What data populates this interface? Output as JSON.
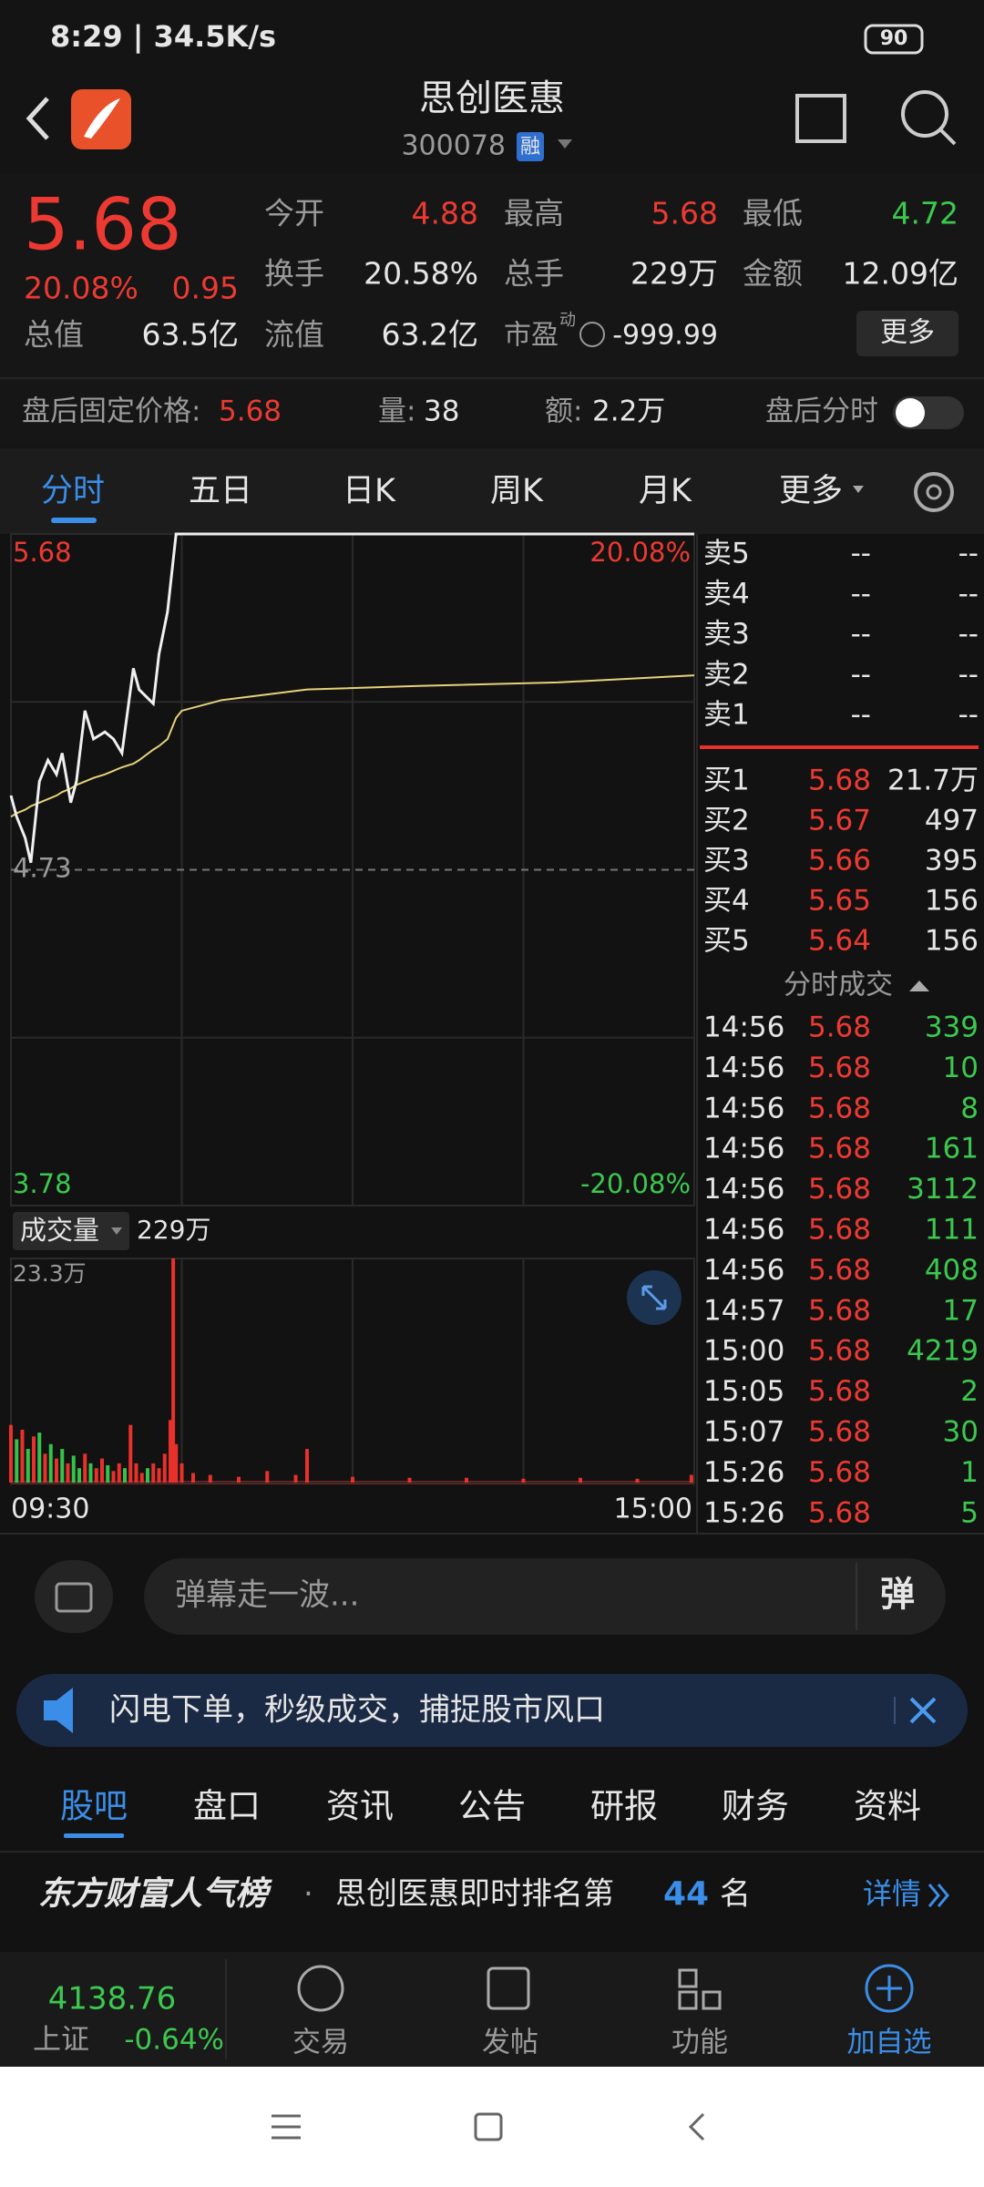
{
  "status_bar": {
    "time": "8:29 | 34.5K/s",
    "battery": "90"
  },
  "header": {
    "title": "思创医惠",
    "code": "300078",
    "margin_tag": "融"
  },
  "quote": {
    "price": "5.68",
    "change_pct": "20.08%",
    "change": "0.95",
    "fields": [
      {
        "label": "今开",
        "value": "4.88"
      },
      {
        "label": "最高",
        "value": "5.68"
      },
      {
        "label": "最低",
        "value": "4.72"
      },
      {
        "label": "换手",
        "value": "20.58%"
      },
      {
        "label": "总手",
        "value": "229万"
      },
      {
        "label": "金额",
        "value": "12.09亿"
      },
      {
        "label": "总值",
        "value": "63.5亿"
      },
      {
        "label": "流值",
        "value": "63.2亿"
      },
      {
        "label": "市盈",
        "value": "-999.99"
      }
    ],
    "pe_sup": "动",
    "more": "更多"
  },
  "after_hours": {
    "price_label": "盘后固定价格:",
    "price": "5.68",
    "volume_label": "量:",
    "volume": "38",
    "amount_label": "额:",
    "amount": "2.2万",
    "chart_label": "盘后分时"
  },
  "tabs": [
    "分时",
    "五日",
    "日K",
    "周K",
    "月K",
    "更多"
  ],
  "chart_data": [
    {
      "type": "line",
      "x": [
        0,
        2,
        5,
        7,
        10,
        13,
        16,
        18,
        21,
        23,
        26,
        29,
        33,
        36,
        39,
        43,
        45,
        50,
        52,
        55,
        58,
        60,
        74,
        104,
        143,
        192,
        240
      ],
      "series": [
        {
          "color": "#f0f0f0",
          "values": [
            4.94,
            4.88,
            4.82,
            4.75,
            4.98,
            5.04,
            5.0,
            5.06,
            4.92,
            4.98,
            5.18,
            5.1,
            5.12,
            5.1,
            5.06,
            5.3,
            5.24,
            5.2,
            5.34,
            5.46,
            5.68,
            5.68,
            5.68,
            5.68,
            5.68,
            5.68,
            5.68
          ]
        },
        {
          "color": "#e6d27a",
          "values": [
            4.88,
            4.89,
            4.9,
            4.91,
            4.92,
            4.93,
            4.94,
            4.95,
            4.96,
            4.97,
            4.98,
            4.99,
            5.0,
            5.01,
            5.02,
            5.03,
            5.04,
            5.07,
            5.08,
            5.1,
            5.16,
            5.18,
            5.21,
            5.24,
            5.25,
            5.26,
            5.28
          ]
        }
      ],
      "xlim": [
        0,
        240
      ],
      "ylim": [
        3.78,
        5.68
      ],
      "yticks": [
        5.68,
        4.73,
        3.78
      ],
      "y2lim": [
        -20.08,
        20.08
      ],
      "y2ticks": [
        {
          "value": 20.08,
          "label": "20.08%"
        },
        {
          "value": -20.08,
          "label": "-20.08%"
        }
      ],
      "grid": true
    },
    {
      "type": "bar",
      "x": [
        0,
        2,
        4,
        6,
        8,
        10,
        12,
        14,
        16,
        18,
        20,
        22,
        24,
        26,
        28,
        30,
        32,
        34,
        36,
        38,
        40,
        42,
        44,
        46,
        48,
        50,
        52,
        54,
        56,
        57,
        58,
        60,
        64,
        70,
        80,
        90,
        100,
        104,
        120,
        140,
        160,
        180,
        200,
        220,
        239
      ],
      "values": [
        6.0,
        4.5,
        5.5,
        3.5,
        4.8,
        5.2,
        3.0,
        4.0,
        2.5,
        3.5,
        2.0,
        2.8,
        1.5,
        3.0,
        2.0,
        1.5,
        2.5,
        1.8,
        1.2,
        2.0,
        1.5,
        6.0,
        2.0,
        1.0,
        1.5,
        2.0,
        1.5,
        3.0,
        6.5,
        23.3,
        4.0,
        2.0,
        1.0,
        0.8,
        0.6,
        1.2,
        0.8,
        3.5,
        0.6,
        0.5,
        0.5,
        0.4,
        0.5,
        0.4,
        0.8
      ],
      "colors": [
        "#e8312b",
        "#35c24a",
        "#e8312b",
        "#35c24a",
        "#e8312b",
        "#35c24a",
        "#e8312b",
        "#35c24a",
        "#e8312b",
        "#35c24a",
        "#e8312b",
        "#35c24a",
        "#35c24a",
        "#e8312b",
        "#35c24a",
        "#e8312b",
        "#e8312b",
        "#35c24a",
        "#e8312b",
        "#e8312b",
        "#35c24a",
        "#e8312b",
        "#e8312b",
        "#e8312b",
        "#35c24a",
        "#e8312b",
        "#e8312b",
        "#e8312b",
        "#e8312b",
        "#e8312b",
        "#e8312b",
        "#e8312b",
        "#e8312b",
        "#e8312b",
        "#e8312b",
        "#e8312b",
        "#e8312b",
        "#e8312b",
        "#e8312b",
        "#e8312b",
        "#e8312b",
        "#e8312b",
        "#e8312b",
        "#e8312b",
        "#e8312b"
      ],
      "xlim": [
        0,
        240
      ],
      "ylim": [
        0,
        23.3
      ],
      "yticks": [
        {
          "value": 23.3,
          "label": "23.3万"
        }
      ],
      "xticks": [
        {
          "value": 0,
          "label": "09:30"
        },
        {
          "value": 240,
          "label": "15:00"
        }
      ]
    }
  ],
  "volume_header": {
    "label": "成交量",
    "total": "229万"
  },
  "order_book": {
    "asks": [
      {
        "label": "卖5",
        "price": "--",
        "volume": "--"
      },
      {
        "label": "卖4",
        "price": "--",
        "volume": "--"
      },
      {
        "label": "卖3",
        "price": "--",
        "volume": "--"
      },
      {
        "label": "卖2",
        "price": "--",
        "volume": "--"
      },
      {
        "label": "卖1",
        "price": "--",
        "volume": "--"
      }
    ],
    "bids": [
      {
        "label": "买1",
        "price": "5.68",
        "volume": "21.7万"
      },
      {
        "label": "买2",
        "price": "5.67",
        "volume": "497"
      },
      {
        "label": "买3",
        "price": "5.66",
        "volume": "395"
      },
      {
        "label": "买4",
        "price": "5.65",
        "volume": "156"
      },
      {
        "label": "买5",
        "price": "5.64",
        "volume": "156"
      }
    ]
  },
  "trades": {
    "title": "分时成交",
    "rows": [
      [
        "14:56",
        "5.68",
        "339"
      ],
      [
        "14:56",
        "5.68",
        "10"
      ],
      [
        "14:56",
        "5.68",
        "8"
      ],
      [
        "14:56",
        "5.68",
        "161"
      ],
      [
        "14:56",
        "5.68",
        "3112"
      ],
      [
        "14:56",
        "5.68",
        "111"
      ],
      [
        "14:56",
        "5.68",
        "408"
      ],
      [
        "14:57",
        "5.68",
        "17"
      ],
      [
        "15:00",
        "5.68",
        "4219"
      ],
      [
        "15:05",
        "5.68",
        "2"
      ],
      [
        "15:07",
        "5.68",
        "30"
      ],
      [
        "15:26",
        "5.68",
        "1"
      ],
      [
        "15:26",
        "5.68",
        "5"
      ]
    ]
  },
  "comment": {
    "placeholder": "弹幕走一波...",
    "button": "弹"
  },
  "banner": "闪电下单，秒级成交，捕捉股市风口",
  "section_tabs": [
    "股吧",
    "盘口",
    "资讯",
    "公告",
    "研报",
    "财务",
    "资料"
  ],
  "ranking": {
    "brand": "东方财富人气榜",
    "dot": "·",
    "text": "思创医惠即时排名第",
    "rank": "44",
    "suffix": "名",
    "link": "详情"
  },
  "bottom_nav": {
    "index_value": "4138.76",
    "index_name": "上证",
    "index_change": "-0.64%",
    "items": [
      "交易",
      "发帖",
      "功能",
      "加自选"
    ]
  }
}
